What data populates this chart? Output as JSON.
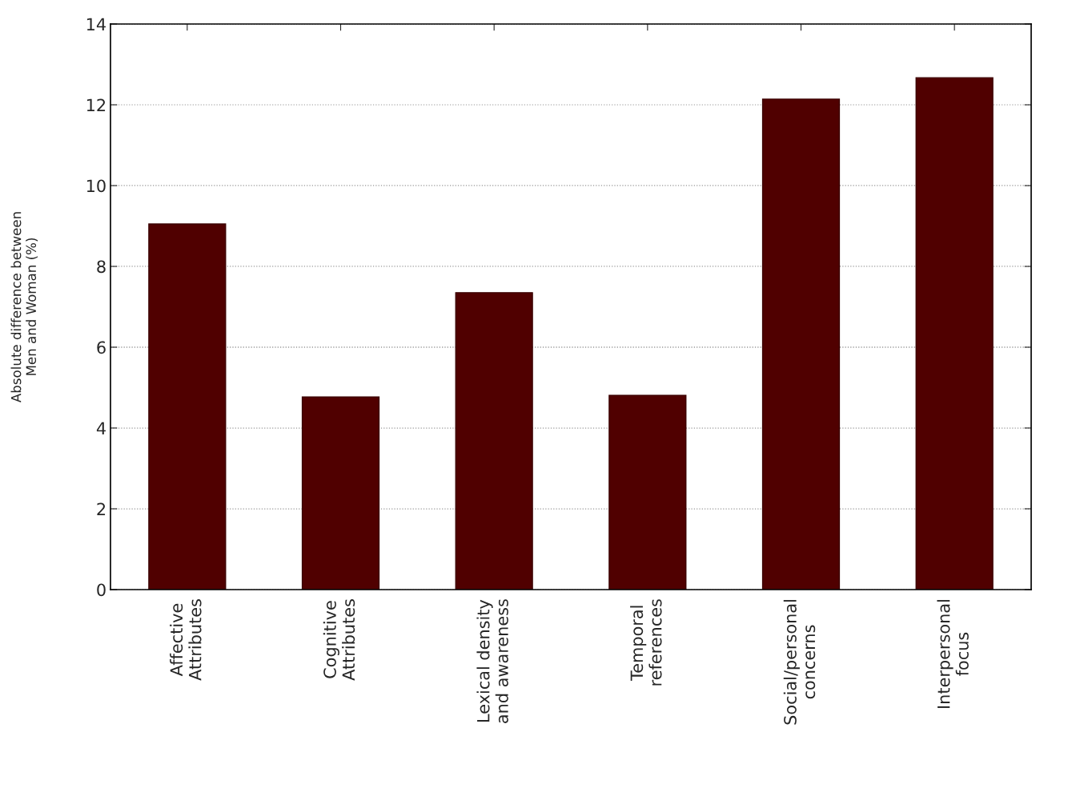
{
  "chart_data": {
    "type": "bar",
    "ylabel": "Absolute difference between\nMen and Woman (%)",
    "categories": [
      "Affective\nAttributes",
      "Cognitive\nAttributes",
      "Lexical density\nand awareness",
      "Temporal\nreferences",
      "Social/personal\nconcerns",
      "Interpersonal\nfocus"
    ],
    "values": [
      9.05,
      4.77,
      7.35,
      4.81,
      12.14,
      12.67
    ],
    "color": "#500000",
    "ylim": [
      0,
      14
    ],
    "yticks": [
      0,
      2,
      4,
      6,
      8,
      10,
      12,
      14
    ],
    "grid": "y"
  }
}
